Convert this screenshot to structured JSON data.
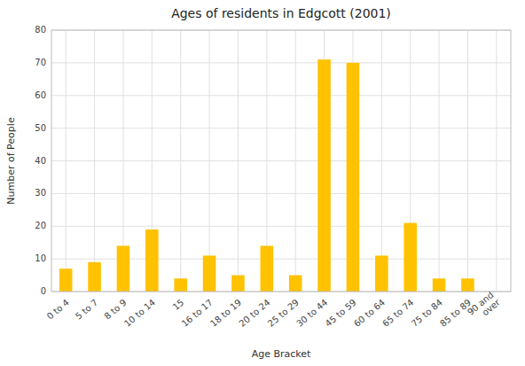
{
  "chart_data": {
    "type": "bar",
    "title": "Ages of residents in Edgcott (2001)",
    "xlabel": "Age Bracket",
    "ylabel": "Number of People",
    "categories": [
      "0 to 4",
      "5 to 7",
      "8 to 9",
      "10 to 14",
      "15",
      "16 to 17",
      "18 to 19",
      "20 to 24",
      "25 to 29",
      "30 to 44",
      "45 to 59",
      "60 to 64",
      "65 to 74",
      "75 to 84",
      "85 to 89",
      "90 and\nover"
    ],
    "values": [
      7,
      9,
      14,
      19,
      4,
      11,
      5,
      14,
      5,
      71,
      70,
      11,
      21,
      4,
      4,
      0
    ],
    "color": "#FFC200",
    "ylim": [
      0,
      80
    ],
    "yticks": [
      0,
      10,
      20,
      30,
      40,
      50,
      60,
      70,
      80
    ],
    "grid": true
  }
}
